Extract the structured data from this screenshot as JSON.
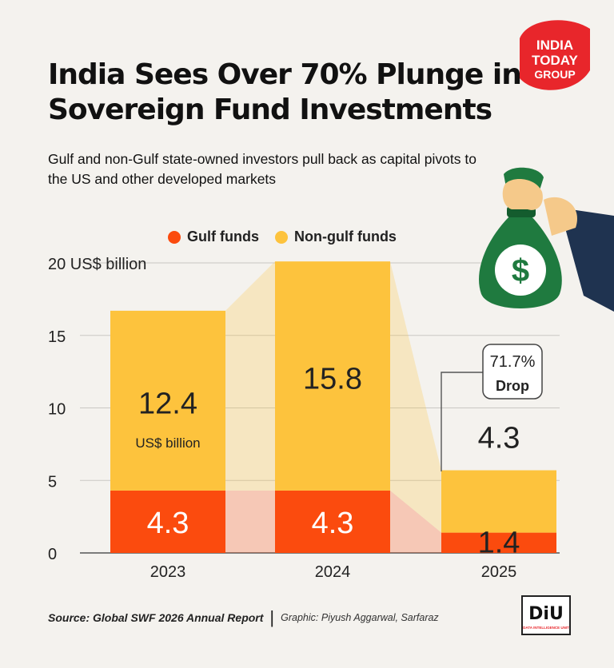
{
  "header": {
    "title": "India Sees Over 70% Plunge in Sovereign Fund Investments",
    "subtitle": "Gulf and non-Gulf state-owned investors pull back as capital pivots to the US and other developed markets"
  },
  "logo": {
    "line1": "INDIA",
    "line2": "TODAY",
    "line3": "GROUP",
    "color": "#e8262b"
  },
  "legend": {
    "gulf": "Gulf funds",
    "nongulf": "Non-gulf funds"
  },
  "chart_data": {
    "type": "bar",
    "stacked": true,
    "categories": [
      "2023",
      "2024",
      "2025"
    ],
    "series": [
      {
        "name": "Gulf funds",
        "values": [
          4.3,
          4.3,
          1.4
        ],
        "color": "#fb4b0e"
      },
      {
        "name": "Non-gulf funds",
        "values": [
          12.4,
          15.8,
          4.3
        ],
        "color": "#fdc33d"
      }
    ],
    "ylim": [
      0,
      20
    ],
    "yticks": [
      0,
      5,
      10,
      15,
      20
    ],
    "ytick_labels": [
      "0",
      "5",
      "10",
      "15",
      "20 US$ billion"
    ],
    "unit_label": "US$ billion",
    "annotation": {
      "value": "71.7%",
      "text": "Drop"
    },
    "grid": true,
    "legend_position": "top"
  },
  "footer": {
    "source": "Source: Global SWF 2026 Annual Report",
    "separator": "|",
    "credit": "Graphic: Piyush Aggarwal, Sarfaraz"
  },
  "diu": {
    "text": "DiU",
    "subtext": "DATA INTELLIGENCE UNIT"
  }
}
